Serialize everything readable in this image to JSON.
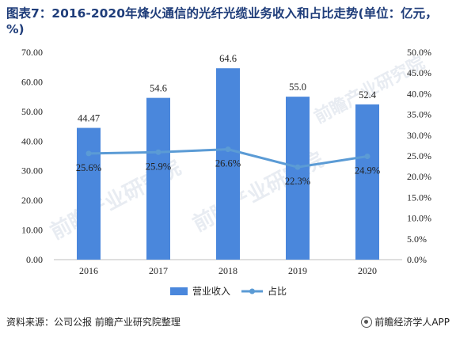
{
  "title": "图表7：2016-2020年烽火通信的光纤光缆业务收入和占比走势(单位：亿元，%)",
  "source": "资料来源：公司公报 前瞻产业研究院整理",
  "brand": "前瞻经济学人APP",
  "watermark": "前瞻产业研究院",
  "colors": {
    "bar": "#4a87dc",
    "line": "#5b9bd5",
    "title": "#1f3d7a"
  },
  "chart_data": {
    "type": "bar",
    "categories": [
      "2016",
      "2017",
      "2018",
      "2019",
      "2020"
    ],
    "series": [
      {
        "name": "营业收入",
        "type": "bar",
        "axis": "left",
        "values": [
          44.47,
          54.6,
          64.6,
          55.0,
          52.4
        ],
        "labels": [
          "44.47",
          "54.6",
          "64.6",
          "55.0",
          "52.4"
        ]
      },
      {
        "name": "占比",
        "type": "line",
        "axis": "right",
        "values": [
          25.6,
          25.9,
          26.6,
          22.3,
          24.9
        ],
        "labels": [
          "25.6%",
          "25.9%",
          "26.6%",
          "22.3%",
          "24.9%"
        ]
      }
    ],
    "y_left": {
      "ylim": [
        0,
        70
      ],
      "ticks": [
        "0.00",
        "10.00",
        "20.00",
        "30.00",
        "40.00",
        "50.00",
        "60.00",
        "70.00"
      ]
    },
    "y_right": {
      "ylim": [
        0,
        50
      ],
      "ticks": [
        "0.0%",
        "5.0%",
        "10.0%",
        "15.0%",
        "20.0%",
        "25.0%",
        "30.0%",
        "35.0%",
        "40.0%",
        "45.0%",
        "50.0%"
      ]
    },
    "legend_position": "bottom",
    "grid": false
  }
}
